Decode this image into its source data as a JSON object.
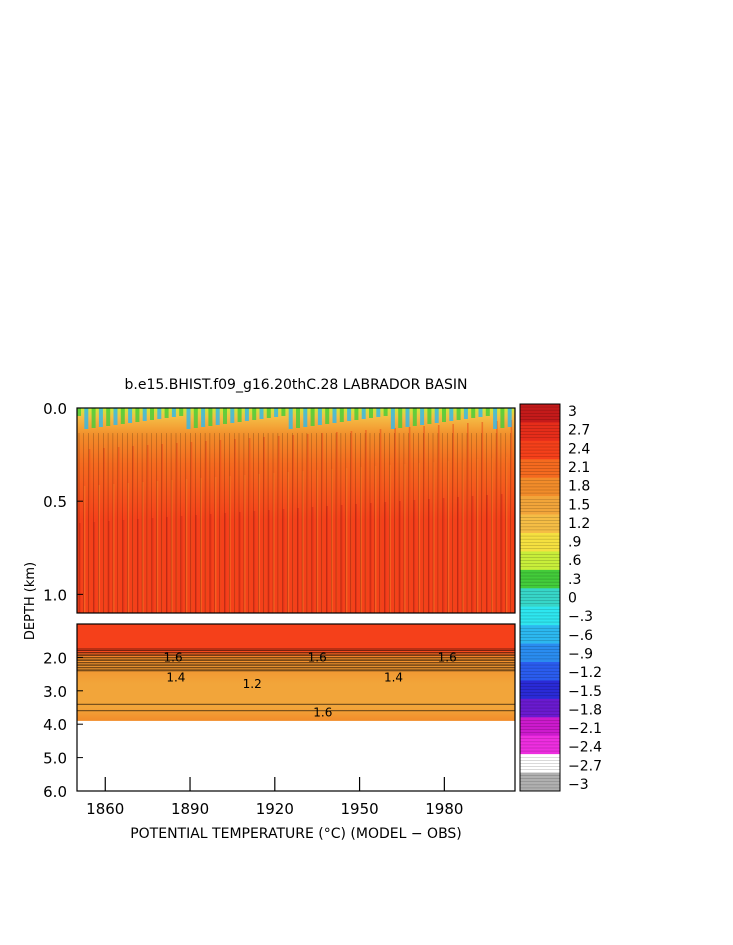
{
  "chart_data": {
    "type": "heatmap",
    "title": "b.e15.BHIST.f09_g16.20thC.28 LABRADOR BASIN",
    "xlabel": "POTENTIAL TEMPERATURE (°C) (MODEL − OBS)",
    "ylabel": "DEPTH (km)",
    "x_range": [
      1850,
      2005
    ],
    "x_ticks": [
      "1860",
      "1890",
      "1920",
      "1950",
      "1980"
    ],
    "upper_panel": {
      "y_range": [
        0.0,
        1.1
      ],
      "y_ticks": [
        "0.0",
        "0.5",
        "1.0"
      ]
    },
    "lower_panel": {
      "y_range": [
        1.0,
        6.0
      ],
      "y_ticks": [
        "2.0",
        "3.0",
        "4.0",
        "5.0",
        "6.0"
      ],
      "data_bottom_depth": 3.9
    },
    "colorbar": {
      "levels": [
        "3",
        "2.7",
        "2.4",
        "2.1",
        "1.8",
        "1.5",
        "1.2",
        ".9",
        ".6",
        ".3",
        "0",
        "−.3",
        "−.6",
        "−.9",
        "−1.2",
        "−1.5",
        "−1.8",
        "−2.1",
        "−2.4",
        "−2.7",
        "−3"
      ],
      "colors": [
        "#c41a1a",
        "#e62d1a",
        "#f5401a",
        "#f56a1f",
        "#f28c2a",
        "#f2a53a",
        "#f5bd45",
        "#f5e040",
        "#c8ee3a",
        "#43cc3a",
        "#37d6c8",
        "#2ee6ef",
        "#2cb8ef",
        "#2a8cef",
        "#2a5cee",
        "#2a2ad6",
        "#6a1ad0",
        "#cc1acd",
        "#ee2ee0",
        "#ffffff",
        "#b0b0b0"
      ]
    },
    "upper_structure": [
      {
        "depth": 0.0,
        "value": 0.3
      },
      {
        "depth": 0.05,
        "value": 0.9
      },
      {
        "depth": 0.15,
        "value": 1.5
      },
      {
        "depth": 0.3,
        "value": 1.8
      },
      {
        "depth": 0.6,
        "value": 2.1
      },
      {
        "depth": 1.1,
        "value": 2.2
      }
    ],
    "lower_structure": [
      {
        "depth": 1.0,
        "value": 2.3
      },
      {
        "depth": 1.8,
        "value": 2.1
      },
      {
        "depth": 2.0,
        "value": 1.6
      },
      {
        "depth": 2.8,
        "value": 1.2
      },
      {
        "depth": 3.5,
        "value": 1.4
      },
      {
        "depth": 3.9,
        "value": 1.6
      }
    ],
    "contour_labels": [
      {
        "text": "1.2",
        "x": 1912,
        "depth": 2.8,
        "panel": "lower"
      },
      {
        "text": "1.4",
        "x": 1885,
        "depth": 2.6,
        "panel": "lower"
      },
      {
        "text": "1.4",
        "x": 1962,
        "depth": 2.6,
        "panel": "lower"
      },
      {
        "text": "1.6",
        "x": 1937,
        "depth": 3.65,
        "panel": "lower"
      },
      {
        "text": "1.6",
        "x": 1884,
        "depth": 2.0,
        "panel": "lower"
      },
      {
        "text": "1.6",
        "x": 1935,
        "depth": 2.0,
        "panel": "lower"
      },
      {
        "text": "1.6",
        "x": 1981,
        "depth": 2.0,
        "panel": "lower"
      }
    ]
  }
}
